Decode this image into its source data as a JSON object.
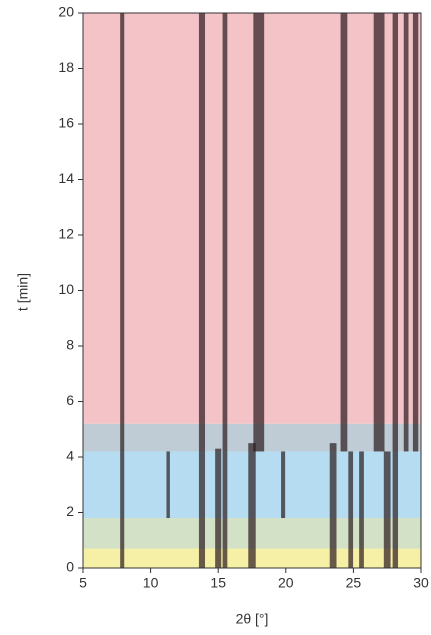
{
  "chart_data": {
    "type": "heatmap",
    "x_label": "2θ [°]",
    "y_label": "t [min]",
    "xlim": [
      5,
      30
    ],
    "xticks": [
      5,
      10,
      15,
      20,
      25,
      30
    ],
    "ylim": [
      0,
      20
    ],
    "yticks": [
      0,
      2,
      4,
      6,
      8,
      10,
      12,
      14,
      16,
      18,
      20
    ],
    "regions": [
      {
        "from": 0,
        "to": 0.7,
        "color": "#f6efa6"
      },
      {
        "from": 0.7,
        "to": 1.8,
        "color": "#d3e2c6"
      },
      {
        "from": 1.8,
        "to": 4.2,
        "color": "#b5dcf0"
      },
      {
        "from": 4.2,
        "to": 5.2,
        "color": "#bfccd6"
      },
      {
        "from": 5.2,
        "to": 20,
        "color": "#f3c3c8"
      }
    ],
    "peak_color": "#2a1a1c",
    "peaks": [
      {
        "x": 7.9,
        "width": 0.3,
        "from": 0,
        "to": 20
      },
      {
        "x": 11.3,
        "width": 0.25,
        "from": 1.8,
        "to": 4.2
      },
      {
        "x": 13.8,
        "width": 0.45,
        "from": 0,
        "to": 20
      },
      {
        "x": 15.0,
        "width": 0.45,
        "from": 0,
        "to": 4.3
      },
      {
        "x": 15.5,
        "width": 0.35,
        "from": 0,
        "to": 20
      },
      {
        "x": 17.5,
        "width": 0.55,
        "from": 0,
        "to": 4.5
      },
      {
        "x": 18.0,
        "width": 0.8,
        "from": 4.2,
        "to": 20
      },
      {
        "x": 19.8,
        "width": 0.3,
        "from": 1.8,
        "to": 4.2
      },
      {
        "x": 23.5,
        "width": 0.5,
        "from": 0,
        "to": 4.5
      },
      {
        "x": 24.3,
        "width": 0.5,
        "from": 4.2,
        "to": 20
      },
      {
        "x": 24.8,
        "width": 0.35,
        "from": 0,
        "to": 4.2
      },
      {
        "x": 25.6,
        "width": 0.35,
        "from": 0,
        "to": 4.2
      },
      {
        "x": 26.9,
        "width": 0.8,
        "from": 4.2,
        "to": 20
      },
      {
        "x": 27.5,
        "width": 0.5,
        "from": 0,
        "to": 4.2
      },
      {
        "x": 28.1,
        "width": 0.4,
        "from": 0,
        "to": 20
      },
      {
        "x": 28.9,
        "width": 0.35,
        "from": 4.2,
        "to": 20
      },
      {
        "x": 29.6,
        "width": 0.4,
        "from": 4.2,
        "to": 20
      }
    ]
  }
}
